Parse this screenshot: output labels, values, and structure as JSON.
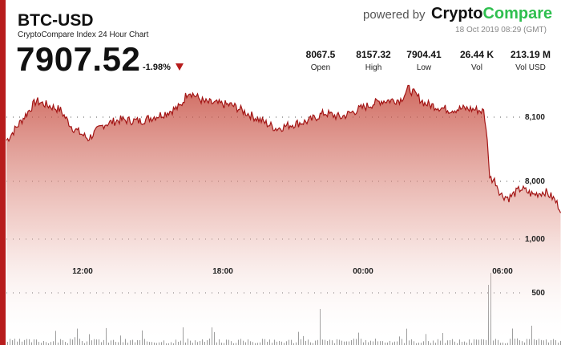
{
  "header": {
    "symbol": "BTC-USD",
    "subtitle": "CryptoCompare Index 24 Hour Chart",
    "price": "7907.52",
    "change": "-1.98%",
    "powered_by": "powered by",
    "brand_part1": "Crypto",
    "brand_part2": "Compare",
    "datetime": "18 Oct 2019 08:29 (GMT)"
  },
  "stats": [
    {
      "value": "8067.5",
      "label": "Open"
    },
    {
      "value": "8157.32",
      "label": "High"
    },
    {
      "value": "7904.41",
      "label": "Low"
    },
    {
      "value": "26.44 K",
      "label": "Vol"
    },
    {
      "value": "213.19 M",
      "label": "Vol USD"
    }
  ],
  "colors": {
    "accent": "#b71c1c",
    "brand_green": "#2fbf4f",
    "line": "#a31515"
  },
  "chart_data": {
    "type": "area",
    "x_ticks": [
      "12:00",
      "18:00",
      "00:00",
      "06:00"
    ],
    "price_ticks": [
      "8,100",
      "8,000"
    ],
    "volume_ticks": [
      "1,000",
      "500"
    ],
    "price_ylim": [
      7890,
      8150
    ],
    "price_keypoints": [
      [
        0,
        8040
      ],
      [
        10,
        8052
      ],
      [
        45,
        8112
      ],
      [
        75,
        8098
      ],
      [
        90,
        8070
      ],
      [
        110,
        8052
      ],
      [
        130,
        8075
      ],
      [
        150,
        8082
      ],
      [
        175,
        8080
      ],
      [
        205,
        8092
      ],
      [
        225,
        8103
      ],
      [
        235,
        8128
      ],
      [
        255,
        8110
      ],
      [
        290,
        8105
      ],
      [
        315,
        8088
      ],
      [
        345,
        8068
      ],
      [
        365,
        8075
      ],
      [
        385,
        8080
      ],
      [
        405,
        8093
      ],
      [
        425,
        8086
      ],
      [
        450,
        8100
      ],
      [
        475,
        8112
      ],
      [
        500,
        8114
      ],
      [
        510,
        8132
      ],
      [
        530,
        8108
      ],
      [
        560,
        8098
      ],
      [
        580,
        8100
      ],
      [
        595,
        8098
      ],
      [
        604,
        8095
      ],
      [
        608,
        8050
      ],
      [
        611,
        7990
      ],
      [
        618,
        7985
      ],
      [
        625,
        7963
      ],
      [
        635,
        7958
      ],
      [
        650,
        7973
      ],
      [
        665,
        7963
      ],
      [
        680,
        7968
      ],
      [
        690,
        7958
      ],
      [
        700,
        7940
      ]
    ]
  }
}
